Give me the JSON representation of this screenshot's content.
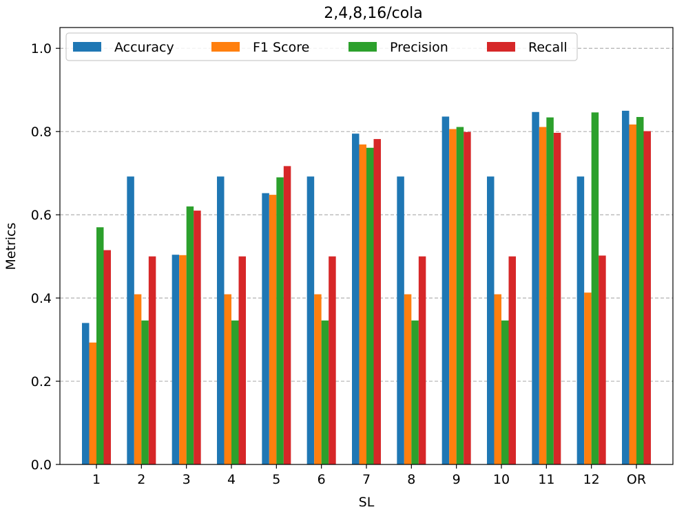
{
  "chart_data": {
    "type": "bar",
    "title": "2,4,8,16/cola",
    "xlabel": "SL",
    "ylabel": "Metrics",
    "ylim": [
      0,
      1.05
    ],
    "yticks": [
      "0.0",
      "0.2",
      "0.4",
      "0.6",
      "0.8",
      "1.0"
    ],
    "grid": "y-dashed",
    "legend_position": "top",
    "categories": [
      "1",
      "2",
      "3",
      "4",
      "5",
      "6",
      "7",
      "8",
      "9",
      "10",
      "11",
      "12",
      "OR"
    ],
    "series": [
      {
        "name": "Accuracy",
        "color": "#1f77b4",
        "values": [
          0.34,
          0.692,
          0.504,
          0.692,
          0.652,
          0.692,
          0.795,
          0.692,
          0.836,
          0.692,
          0.847,
          0.692,
          0.85
        ]
      },
      {
        "name": "F1 Score",
        "color": "#ff7f0e",
        "values": [
          0.293,
          0.409,
          0.503,
          0.409,
          0.648,
          0.409,
          0.769,
          0.409,
          0.806,
          0.409,
          0.811,
          0.413,
          0.817
        ]
      },
      {
        "name": "Precision",
        "color": "#2ca02c",
        "values": [
          0.57,
          0.346,
          0.62,
          0.346,
          0.69,
          0.346,
          0.761,
          0.346,
          0.811,
          0.346,
          0.834,
          0.846,
          0.835
        ]
      },
      {
        "name": "Recall",
        "color": "#d62728",
        "values": [
          0.515,
          0.5,
          0.61,
          0.5,
          0.717,
          0.5,
          0.782,
          0.5,
          0.799,
          0.5,
          0.797,
          0.502,
          0.801
        ]
      }
    ]
  }
}
